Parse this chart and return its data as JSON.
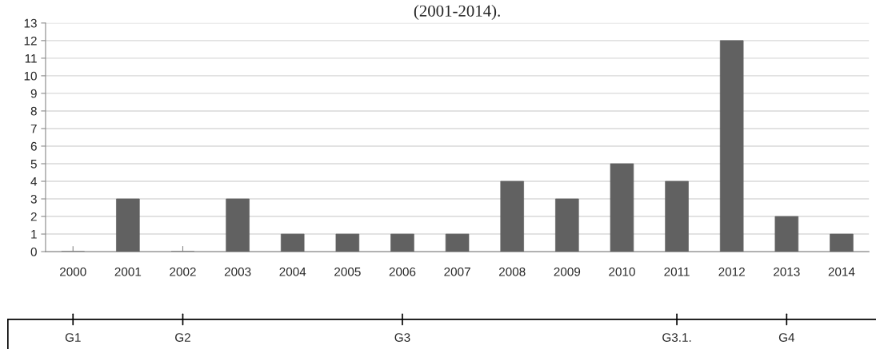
{
  "chart_data": {
    "type": "bar",
    "title": "(2001-2014).",
    "categories": [
      "2000",
      "2001",
      "2002",
      "2003",
      "2004",
      "2005",
      "2006",
      "2007",
      "2008",
      "2009",
      "2010",
      "2011",
      "2012",
      "2013",
      "2014"
    ],
    "values": [
      0,
      3,
      0,
      3,
      1,
      1,
      1,
      1,
      4,
      3,
      5,
      4,
      12,
      2,
      1
    ],
    "color": "#616161",
    "ylim": [
      0,
      13
    ],
    "yticks": [
      0,
      1,
      2,
      3,
      4,
      5,
      6,
      7,
      8,
      9,
      10,
      11,
      12,
      13
    ],
    "grid": "y",
    "legend": false,
    "annotations": [
      {
        "text": "G1",
        "x": "2000"
      },
      {
        "text": "G2",
        "x": "2002"
      },
      {
        "text": "G3",
        "x": "2006"
      },
      {
        "text": "G3.1.",
        "x": "2011"
      },
      {
        "text": "G4",
        "x": "2013"
      }
    ]
  }
}
